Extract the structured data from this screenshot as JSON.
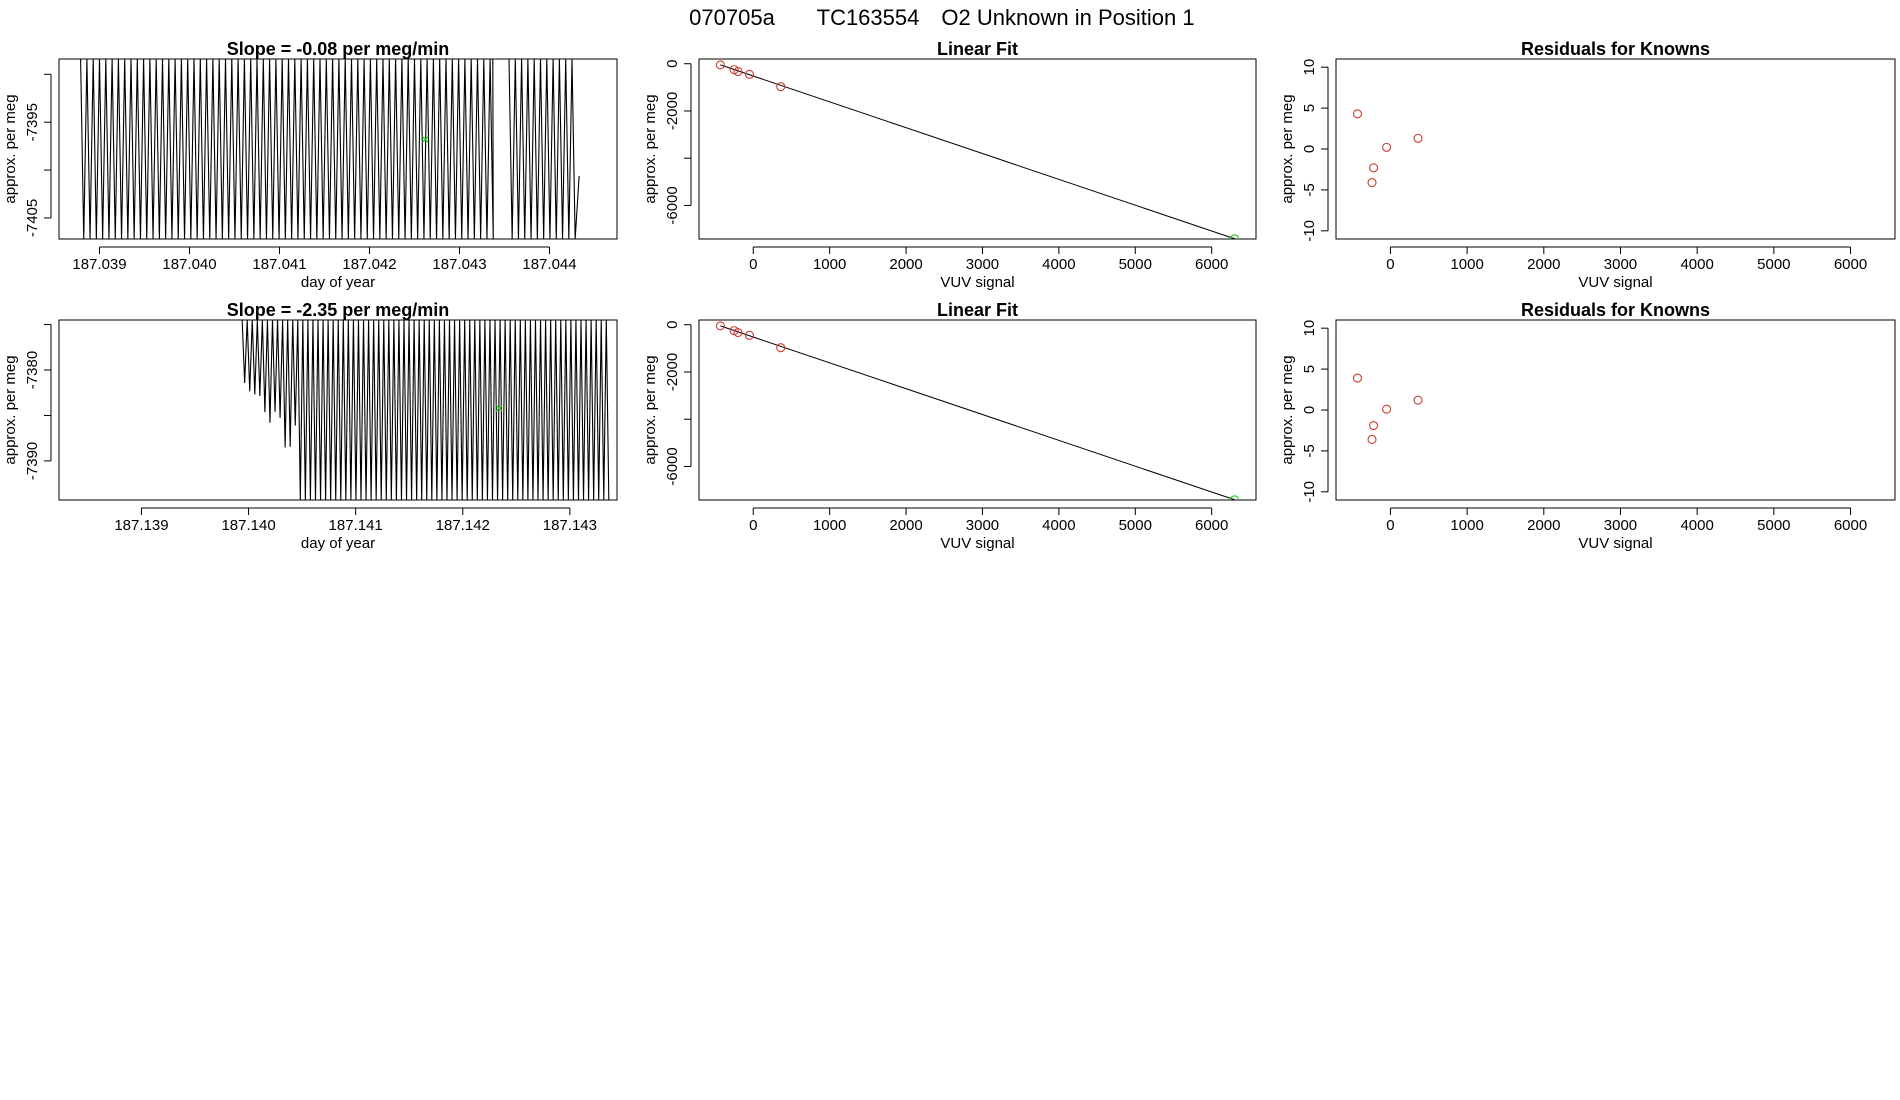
{
  "header": {
    "title_a": "070705a",
    "title_b": "TC163554",
    "title_c": "O2 Unknown in Position  1"
  },
  "colors": {
    "known": "#cd3b2e",
    "unknown": "#22cc22",
    "trace": "#000000",
    "fit": "#000000"
  },
  "chart_data": [
    {
      "id": "p1",
      "type": "line",
      "title": "Slope =  -0.08  per meg/min",
      "xlabel": "day of year",
      "ylabel": "approx. per meg",
      "xlim": [
        187.03855,
        187.04475
      ],
      "ylim": [
        -7407.2,
        -7388.4
      ],
      "xticks": [
        187.039,
        187.04,
        187.041,
        187.042,
        187.043,
        187.044
      ],
      "xticklabels": [
        "187.039",
        "187.040",
        "187.041",
        "187.042",
        "187.043",
        "187.044"
      ],
      "yticks": [
        -7405,
        -7400,
        -7395,
        -7390
      ],
      "yticklabels": [
        "-7405",
        "",
        "-7395",
        ""
      ],
      "series": [
        {
          "name": "trace",
          "kind": "oscillation",
          "x_start": 187.03879,
          "x_end": 187.04425,
          "cycles": 78,
          "y_top": -7388.4,
          "y_bottom": -7407.2,
          "gap": [
            187.04337,
            187.04351
          ]
        }
      ],
      "points": [
        {
          "x": 187.04262,
          "y": -7396.8,
          "label": "unknown"
        }
      ]
    },
    {
      "id": "p2",
      "type": "scatter",
      "title": "Linear Fit",
      "xlabel": "VUV signal",
      "ylabel": "approx. per meg",
      "xlim": [
        -710,
        6580
      ],
      "ylim": [
        -7420,
        200
      ],
      "xticks": [
        0,
        1000,
        2000,
        3000,
        4000,
        5000,
        6000
      ],
      "xticklabels": [
        "0",
        "1000",
        "2000",
        "3000",
        "4000",
        "5000",
        "6000"
      ],
      "yticks": [
        0,
        -2000,
        -4000,
        -6000
      ],
      "yticklabels": [
        "0",
        "-2000",
        "",
        "-6000"
      ],
      "line": {
        "x0": -430,
        "y0": -50,
        "x1": 6300,
        "y1": -7410
      },
      "knowns": [
        {
          "x": -430,
          "y": -50
        },
        {
          "x": -250,
          "y": -250
        },
        {
          "x": -200,
          "y": -330
        },
        {
          "x": -50,
          "y": -450
        },
        {
          "x": 360,
          "y": -970
        }
      ],
      "unknown": {
        "x": 6300,
        "y": -7410
      }
    },
    {
      "id": "p3",
      "type": "scatter",
      "title": "Residuals for Knowns",
      "xlabel": "VUV signal",
      "ylabel": "approx. per meg",
      "xlim": [
        -710,
        6580
      ],
      "ylim": [
        -11,
        11
      ],
      "xticks": [
        0,
        1000,
        2000,
        3000,
        4000,
        5000,
        6000
      ],
      "xticklabels": [
        "0",
        "1000",
        "2000",
        "3000",
        "4000",
        "5000",
        "6000"
      ],
      "yticks": [
        10,
        5,
        0,
        -5,
        -10
      ],
      "yticklabels": [
        "10",
        "5",
        "0",
        "-5",
        "-10"
      ],
      "knowns": [
        {
          "x": -430,
          "y": 4.3
        },
        {
          "x": -220,
          "y": -2.3
        },
        {
          "x": -240,
          "y": -4.1
        },
        {
          "x": -50,
          "y": 0.2
        },
        {
          "x": 360,
          "y": 1.3
        }
      ]
    },
    {
      "id": "p4",
      "type": "line",
      "title": "Slope =  -2.35  per meg/min",
      "xlabel": "day of year",
      "ylabel": "approx. per meg",
      "xlim": [
        187.13823,
        187.14344
      ],
      "ylim": [
        -7394.3,
        -7374.5
      ],
      "xticks": [
        187.139,
        187.14,
        187.141,
        187.142,
        187.143
      ],
      "xticklabels": [
        "187.139",
        "187.140",
        "187.141",
        "187.142",
        "187.143"
      ],
      "yticks": [
        -7390,
        -7385,
        -7380,
        -7375
      ],
      "yticklabels": [
        "-7390",
        "",
        "-7380",
        ""
      ],
      "series": [
        {
          "name": "trace",
          "kind": "oscillation_growing",
          "x_start": 187.13994,
          "x_end": 187.14334,
          "cycles": 72,
          "y_top": -7374.5,
          "y_bottom": -7394.3,
          "baseline": -7394.3
        }
      ],
      "points": [
        {
          "x": 187.14234,
          "y": -7384.2,
          "label": "unknown"
        }
      ]
    },
    {
      "id": "p5",
      "type": "scatter",
      "title": "Linear Fit",
      "xlabel": "VUV signal",
      "ylabel": "approx. per meg",
      "xlim": [
        -710,
        6580
      ],
      "ylim": [
        -7420,
        200
      ],
      "xticks": [
        0,
        1000,
        2000,
        3000,
        4000,
        5000,
        6000
      ],
      "xticklabels": [
        "0",
        "1000",
        "2000",
        "3000",
        "4000",
        "5000",
        "6000"
      ],
      "yticks": [
        0,
        -2000,
        -4000,
        -6000
      ],
      "yticklabels": [
        "0",
        "-2000",
        "",
        "-6000"
      ],
      "line": {
        "x0": -430,
        "y0": -50,
        "x1": 6300,
        "y1": -7410
      },
      "knowns": [
        {
          "x": -430,
          "y": -50
        },
        {
          "x": -250,
          "y": -250
        },
        {
          "x": -200,
          "y": -330
        },
        {
          "x": -50,
          "y": -450
        },
        {
          "x": 360,
          "y": -970
        }
      ],
      "unknown": {
        "x": 6300,
        "y": -7410
      }
    },
    {
      "id": "p6",
      "type": "scatter",
      "title": "Residuals for Knowns",
      "xlabel": "VUV signal",
      "ylabel": "approx. per meg",
      "xlim": [
        -710,
        6580
      ],
      "ylim": [
        -11,
        11
      ],
      "xticks": [
        0,
        1000,
        2000,
        3000,
        4000,
        5000,
        6000
      ],
      "xticklabels": [
        "0",
        "1000",
        "2000",
        "3000",
        "4000",
        "5000",
        "6000"
      ],
      "yticks": [
        10,
        5,
        0,
        -5,
        -10
      ],
      "yticklabels": [
        "10",
        "5",
        "0",
        "-5",
        "-10"
      ],
      "knowns": [
        {
          "x": -430,
          "y": 3.9
        },
        {
          "x": -220,
          "y": -1.9
        },
        {
          "x": -240,
          "y": -3.6
        },
        {
          "x": -50,
          "y": 0.1
        },
        {
          "x": 360,
          "y": 1.2
        }
      ]
    }
  ]
}
